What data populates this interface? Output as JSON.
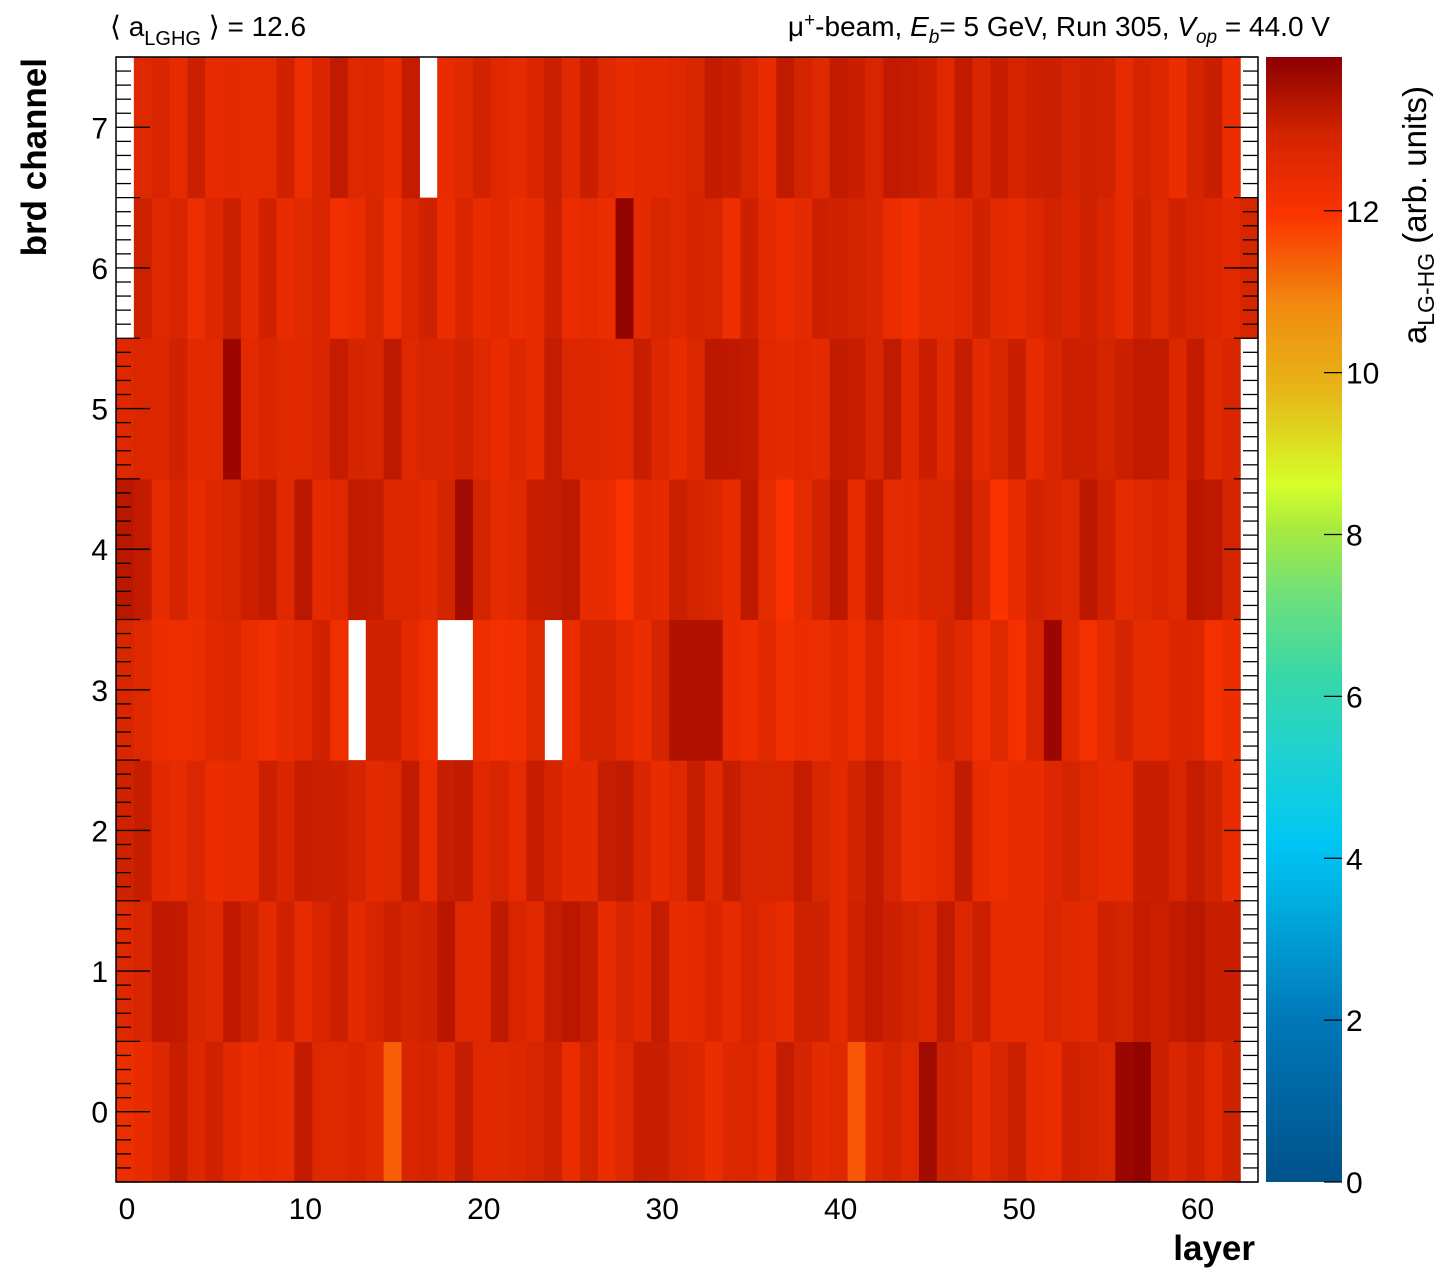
{
  "header": {
    "left_prefix": "⟨ a",
    "left_sub": "LGHG",
    "left_suffix": " ⟩ = 12.6",
    "right_pre": "μ",
    "right_sup": "+",
    "right_beam": "-beam, ",
    "right_E": "E",
    "right_E_sub": "b",
    "right_mid": "= 5 GeV, Run 305, ",
    "right_V": "V",
    "right_V_sub": "op",
    "right_end": " = 44.0 V"
  },
  "chart_data": {
    "type": "heatmap",
    "xlabel": "layer",
    "ylabel": "brd channel",
    "zlabel_main": "a",
    "zlabel_sub": "LG-HG",
    "zlabel_units": "  (arb. units)",
    "x_range": [
      -0.5,
      63.5
    ],
    "y_range": [
      -0.5,
      7.5
    ],
    "z_range": [
      0,
      13.9
    ],
    "x_ticks": [
      0,
      10,
      20,
      30,
      40,
      50,
      60
    ],
    "y_ticks": [
      0,
      1,
      2,
      3,
      4,
      5,
      6,
      7
    ],
    "z_ticks": [
      0,
      2,
      4,
      6,
      8,
      10,
      12
    ],
    "empty_cells": [
      [
        17,
        7
      ],
      [
        13,
        3
      ],
      [
        18,
        3
      ],
      [
        19,
        3
      ],
      [
        24,
        3
      ],
      [
        63,
        0
      ],
      [
        63,
        1
      ],
      [
        63,
        2
      ],
      [
        63,
        3
      ],
      [
        63,
        4
      ],
      [
        63,
        5
      ],
      [
        63,
        7
      ],
      [
        0,
        6
      ],
      [
        0,
        7
      ]
    ],
    "row_levels": {
      "0": 12.7,
      "1": 12.8,
      "2": 12.7,
      "3": 12.5,
      "4": 12.8,
      "5": 12.8,
      "6": 12.6,
      "7": 12.7
    },
    "notable_cells": [
      {
        "x": 15,
        "y": 0,
        "z": 11.4
      },
      {
        "x": 41,
        "y": 0,
        "z": 11.5
      },
      {
        "x": 56,
        "y": 0,
        "z": 13.7
      },
      {
        "x": 57,
        "y": 0,
        "z": 13.8
      },
      {
        "x": 45,
        "y": 0,
        "z": 13.6
      },
      {
        "x": 19,
        "y": 4,
        "z": 13.6
      },
      {
        "x": 28,
        "y": 4,
        "z": 12.0
      },
      {
        "x": 37,
        "y": 4,
        "z": 12.0
      },
      {
        "x": 49,
        "y": 4,
        "z": 12.0
      },
      {
        "x": 6,
        "y": 5,
        "z": 13.7
      },
      {
        "x": 28,
        "y": 6,
        "z": 13.8
      },
      {
        "x": 52,
        "y": 3,
        "z": 13.7
      },
      {
        "x": 31,
        "y": 3,
        "z": 13.4
      },
      {
        "x": 32,
        "y": 3,
        "z": 13.4
      },
      {
        "x": 33,
        "y": 3,
        "z": 13.4
      }
    ]
  }
}
